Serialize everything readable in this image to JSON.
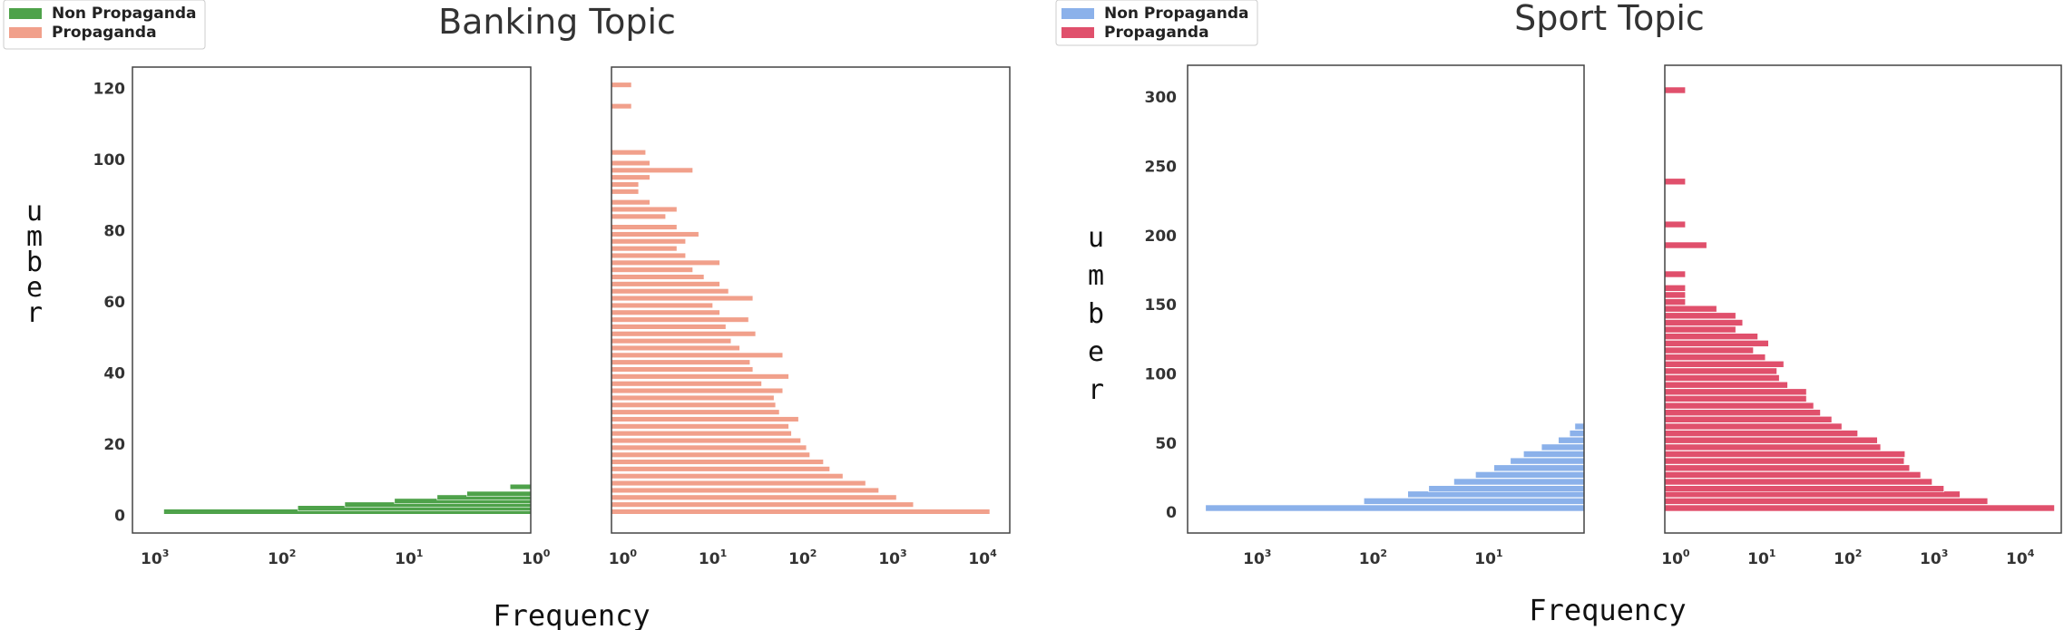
{
  "chart_data": [
    {
      "type": "bar",
      "orientation": "horizontal",
      "title": "Banking Topic",
      "xlabel": "Frequency",
      "ylabel_letters": [
        "u",
        "m",
        "b",
        "e",
        "r"
      ],
      "legend": {
        "placement": "top-left",
        "items": [
          {
            "label": "Non Propaganda",
            "color": "#4ea24a"
          },
          {
            "label": "Propaganda",
            "color": "#f1a08b"
          }
        ]
      },
      "ylim": [
        -5,
        126
      ],
      "y_ticks": [
        0,
        20,
        40,
        60,
        80,
        100,
        120
      ],
      "panels": [
        {
          "series": "Non Propaganda",
          "color": "#4ea24a",
          "x_scale": "log",
          "x_direction": "reversed",
          "xlim": [
            1.1,
            1500
          ],
          "x_ticks": [
            1000,
            100,
            10,
            1
          ],
          "bars": [
            {
              "y": 1,
              "x": 850
            },
            {
              "y": 2,
              "x": 75
            },
            {
              "y": 3,
              "x": 32
            },
            {
              "y": 4,
              "x": 13
            },
            {
              "y": 5,
              "x": 6
            },
            {
              "y": 6,
              "x": 3.5
            },
            {
              "y": 8,
              "x": 1.6
            }
          ]
        },
        {
          "series": "Propaganda",
          "color": "#f1a08b",
          "x_scale": "log",
          "x_direction": "normal",
          "xlim": [
            0.75,
            20000
          ],
          "x_ticks": [
            1,
            10,
            100,
            1000,
            10000
          ],
          "bars": [
            {
              "y": 1,
              "x": 12000
            },
            {
              "y": 3,
              "x": 1700
            },
            {
              "y": 5,
              "x": 1100
            },
            {
              "y": 7,
              "x": 700
            },
            {
              "y": 9,
              "x": 500
            },
            {
              "y": 11,
              "x": 280
            },
            {
              "y": 13,
              "x": 200
            },
            {
              "y": 15,
              "x": 170
            },
            {
              "y": 17,
              "x": 120
            },
            {
              "y": 19,
              "x": 110
            },
            {
              "y": 21,
              "x": 95
            },
            {
              "y": 23,
              "x": 75
            },
            {
              "y": 25,
              "x": 70
            },
            {
              "y": 27,
              "x": 90
            },
            {
              "y": 29,
              "x": 55
            },
            {
              "y": 31,
              "x": 50
            },
            {
              "y": 33,
              "x": 48
            },
            {
              "y": 35,
              "x": 60
            },
            {
              "y": 37,
              "x": 35
            },
            {
              "y": 39,
              "x": 70
            },
            {
              "y": 41,
              "x": 28
            },
            {
              "y": 43,
              "x": 26
            },
            {
              "y": 45,
              "x": 60
            },
            {
              "y": 47,
              "x": 20
            },
            {
              "y": 49,
              "x": 16
            },
            {
              "y": 51,
              "x": 30
            },
            {
              "y": 53,
              "x": 14
            },
            {
              "y": 55,
              "x": 25
            },
            {
              "y": 57,
              "x": 12
            },
            {
              "y": 59,
              "x": 10
            },
            {
              "y": 61,
              "x": 28
            },
            {
              "y": 63,
              "x": 15
            },
            {
              "y": 65,
              "x": 12
            },
            {
              "y": 67,
              "x": 8
            },
            {
              "y": 69,
              "x": 6
            },
            {
              "y": 71,
              "x": 12
            },
            {
              "y": 73,
              "x": 5
            },
            {
              "y": 75,
              "x": 4
            },
            {
              "y": 77,
              "x": 5
            },
            {
              "y": 79,
              "x": 7
            },
            {
              "y": 81,
              "x": 4
            },
            {
              "y": 84,
              "x": 3
            },
            {
              "y": 86,
              "x": 4
            },
            {
              "y": 88,
              "x": 2
            },
            {
              "y": 91,
              "x": 1.5
            },
            {
              "y": 93,
              "x": 1.5
            },
            {
              "y": 95,
              "x": 2
            },
            {
              "y": 97,
              "x": 6
            },
            {
              "y": 99,
              "x": 2
            },
            {
              "y": 102,
              "x": 1.8
            },
            {
              "y": 115,
              "x": 1.25
            },
            {
              "y": 121,
              "x": 1.25
            }
          ]
        }
      ]
    },
    {
      "type": "bar",
      "orientation": "horizontal",
      "title": "Sport Topic",
      "xlabel": "Frequency",
      "ylabel_letters": [
        "u",
        "m",
        "b",
        "e",
        "r"
      ],
      "legend": {
        "placement": "top-left",
        "items": [
          {
            "label": "Non Propaganda",
            "color": "#8bb1ea"
          },
          {
            "label": "Propaganda",
            "color": "#e0506c"
          }
        ]
      },
      "ylim": [
        -15,
        323
      ],
      "y_ticks": [
        0,
        50,
        100,
        150,
        200,
        250,
        300
      ],
      "panels": [
        {
          "series": "Non Propaganda",
          "color": "#8bb1ea",
          "x_scale": "log",
          "x_direction": "reversed",
          "xlim": [
            1.5,
            4000
          ],
          "x_ticks": [
            1000,
            100,
            10
          ],
          "bars": [
            {
              "y": 3,
              "x": 2800
            },
            {
              "y": 8,
              "x": 120
            },
            {
              "y": 13,
              "x": 50
            },
            {
              "y": 17,
              "x": 33
            },
            {
              "y": 22,
              "x": 20
            },
            {
              "y": 27,
              "x": 13
            },
            {
              "y": 32,
              "x": 9
            },
            {
              "y": 37,
              "x": 6.5
            },
            {
              "y": 42,
              "x": 5
            },
            {
              "y": 47,
              "x": 3.5
            },
            {
              "y": 52,
              "x": 2.5
            },
            {
              "y": 57,
              "x": 2
            },
            {
              "y": 62,
              "x": 1.8
            }
          ]
        },
        {
          "series": "Propaganda",
          "color": "#e0506c",
          "x_scale": "log",
          "x_direction": "normal",
          "xlim": [
            0.75,
            30000
          ],
          "x_ticks": [
            1,
            10,
            100,
            1000,
            10000
          ],
          "bars": [
            {
              "y": 3,
              "x": 25000
            },
            {
              "y": 8,
              "x": 4200
            },
            {
              "y": 13,
              "x": 2000
            },
            {
              "y": 17,
              "x": 1300
            },
            {
              "y": 22,
              "x": 950
            },
            {
              "y": 27,
              "x": 700
            },
            {
              "y": 32,
              "x": 520
            },
            {
              "y": 37,
              "x": 450
            },
            {
              "y": 42,
              "x": 460
            },
            {
              "y": 47,
              "x": 240
            },
            {
              "y": 52,
              "x": 220
            },
            {
              "y": 57,
              "x": 130
            },
            {
              "y": 62,
              "x": 85
            },
            {
              "y": 67,
              "x": 65
            },
            {
              "y": 72,
              "x": 48
            },
            {
              "y": 77,
              "x": 40
            },
            {
              "y": 82,
              "x": 33
            },
            {
              "y": 87,
              "x": 33
            },
            {
              "y": 92,
              "x": 20
            },
            {
              "y": 97,
              "x": 16
            },
            {
              "y": 102,
              "x": 15
            },
            {
              "y": 107,
              "x": 18
            },
            {
              "y": 112,
              "x": 11
            },
            {
              "y": 117,
              "x": 8
            },
            {
              "y": 122,
              "x": 12
            },
            {
              "y": 127,
              "x": 9
            },
            {
              "y": 132,
              "x": 5
            },
            {
              "y": 137,
              "x": 6
            },
            {
              "y": 142,
              "x": 5
            },
            {
              "y": 147,
              "x": 3
            },
            {
              "y": 152,
              "x": 1.3
            },
            {
              "y": 157,
              "x": 1.3
            },
            {
              "y": 162,
              "x": 1.3
            },
            {
              "y": 172,
              "x": 1.3
            },
            {
              "y": 193,
              "x": 2.3
            },
            {
              "y": 208,
              "x": 1.3
            },
            {
              "y": 239,
              "x": 1.3
            },
            {
              "y": 305,
              "x": 1.3
            }
          ]
        }
      ]
    }
  ]
}
